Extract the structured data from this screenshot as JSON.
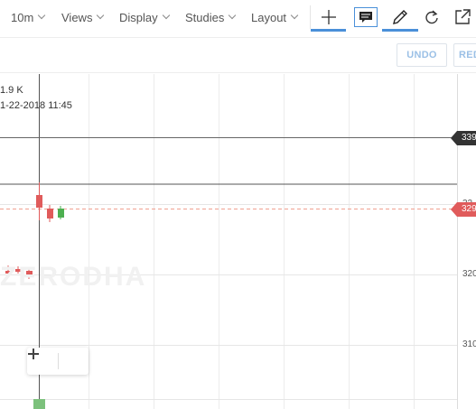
{
  "toolbar": {
    "interval": "10m",
    "views": "Views",
    "display": "Display",
    "studies": "Studies",
    "layout": "Layout",
    "icons": [
      "crosshair-icon",
      "comment-icon",
      "pencil-icon",
      "refresh-icon",
      "popout-icon"
    ]
  },
  "actions": {
    "undo": "UNDO",
    "redo": "RED"
  },
  "chart": {
    "volume_text": "1.9 K",
    "datetime_text": "1-22-2018 11:45",
    "watermark": "ZERODHA",
    "axis_labels": [
      "320",
      "310"
    ],
    "price_tags": [
      {
        "text": "339",
        "color": "#333333"
      },
      {
        "text": "329",
        "color": "#e05b5b"
      }
    ],
    "clipped_label": "32",
    "colors": {
      "up": "#4caf50",
      "down": "#e05b5b",
      "crosshair": "#555555"
    }
  },
  "zoom": {
    "minus": "−",
    "plus": "+"
  }
}
